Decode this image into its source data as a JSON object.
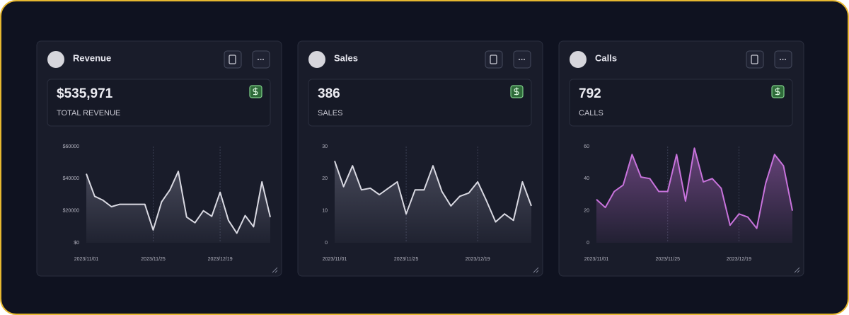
{
  "chart_data": [
    {
      "type": "area",
      "title": "Revenue",
      "kpi": {
        "value": "$535,971",
        "label": "TOTAL REVENUE"
      },
      "color": "#d9d9e2",
      "x": [
        "2023/11/01",
        "2023/11/04",
        "2023/11/07",
        "2023/11/10",
        "2023/11/13",
        "2023/11/16",
        "2023/11/19",
        "2023/11/22",
        "2023/11/25",
        "2023/11/28",
        "2023/12/01",
        "2023/12/04",
        "2023/12/07",
        "2023/12/10",
        "2023/12/13",
        "2023/12/16",
        "2023/12/19",
        "2023/12/22",
        "2023/12/25",
        "2023/12/28",
        "2023/12/31",
        "2024/01/03",
        "2024/01/06"
      ],
      "values": [
        43000,
        29000,
        26500,
        22500,
        24000,
        24000,
        24000,
        24000,
        8000,
        25500,
        33000,
        44500,
        16000,
        12500,
        20000,
        16500,
        31500,
        14000,
        6000,
        17000,
        10000,
        38000,
        16000
      ],
      "xlim": [
        "2023/11/01",
        "2024/01/06"
      ],
      "xticks": [
        "2023/11/01",
        "2023/11/25",
        "2023/12/19"
      ],
      "ylim": [
        0,
        60000
      ],
      "yticks": [
        {
          "value": 0,
          "label": "$0"
        },
        {
          "value": 20000,
          "label": "$20000"
        },
        {
          "value": 40000,
          "label": "$40000"
        },
        {
          "value": 60000,
          "label": "$60000"
        }
      ]
    },
    {
      "type": "area",
      "title": "Sales",
      "kpi": {
        "value": "386",
        "label": "SALES"
      },
      "color": "#d9d9e2",
      "x": [
        "2023/11/01",
        "2023/11/04",
        "2023/11/07",
        "2023/11/10",
        "2023/11/13",
        "2023/11/16",
        "2023/11/19",
        "2023/11/22",
        "2023/11/25",
        "2023/11/28",
        "2023/12/01",
        "2023/12/04",
        "2023/12/07",
        "2023/12/10",
        "2023/12/13",
        "2023/12/16",
        "2023/12/19",
        "2023/12/22",
        "2023/12/25",
        "2023/12/28",
        "2023/12/31",
        "2024/01/03",
        "2024/01/06"
      ],
      "values": [
        25.5,
        17.5,
        24,
        16.5,
        17,
        15,
        17,
        19,
        9,
        16.5,
        16.5,
        24,
        16,
        11.5,
        14.5,
        15.5,
        19,
        13,
        6.5,
        9,
        7,
        19,
        11.5
      ],
      "xlim": [
        "2023/11/01",
        "2024/01/06"
      ],
      "xticks": [
        "2023/11/01",
        "2023/11/25",
        "2023/12/19"
      ],
      "ylim": [
        0,
        30
      ],
      "yticks": [
        0,
        10,
        20,
        30
      ]
    },
    {
      "type": "area",
      "title": "Calls",
      "kpi": {
        "value": "792",
        "label": "CALLS"
      },
      "color": "#c873dc",
      "x": [
        "2023/11/01",
        "2023/11/04",
        "2023/11/07",
        "2023/11/10",
        "2023/11/13",
        "2023/11/16",
        "2023/11/19",
        "2023/11/22",
        "2023/11/25",
        "2023/11/28",
        "2023/12/01",
        "2023/12/04",
        "2023/12/07",
        "2023/12/10",
        "2023/12/13",
        "2023/12/16",
        "2023/12/19",
        "2023/12/22",
        "2023/12/25",
        "2023/12/28",
        "2023/12/31",
        "2024/01/03",
        "2024/01/06"
      ],
      "values": [
        27,
        22,
        32,
        36,
        55,
        41,
        40,
        32,
        32,
        55,
        26,
        59,
        38,
        40,
        34,
        11,
        18,
        16,
        9,
        37,
        55,
        48,
        20
      ],
      "xlim": [
        "2023/11/01",
        "2024/01/06"
      ],
      "xticks": [
        "2023/11/01",
        "2023/11/25",
        "2023/12/19"
      ],
      "ylim": [
        0,
        60
      ],
      "yticks": [
        0,
        20,
        40,
        60
      ]
    }
  ]
}
